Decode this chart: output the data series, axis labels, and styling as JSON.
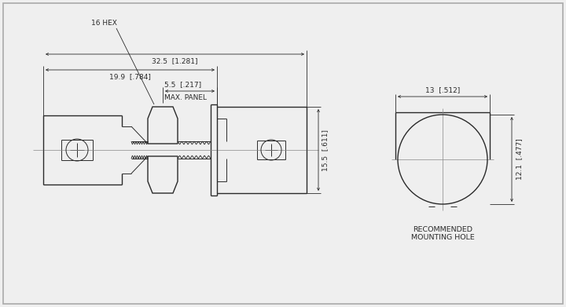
{
  "bg_color": "#efefef",
  "line_color": "#2a2a2a",
  "lw": 1.0,
  "thin_lw": 0.7,
  "dim_lw": 0.6,
  "font_size": 6.5,
  "annotations": {
    "hex_label": "16 HEX",
    "dim_55": "5.5  [.217]",
    "max_panel": "MAX. PANEL",
    "dim_199": "19.9  [.784]",
    "dim_325": "32.5  [1.281]",
    "dim_155": "15.5  [.611]",
    "dim_13": "13  [.512]",
    "dim_121": "12.1  [.477]",
    "rec_mount": "RECOMMENDED\nMOUNTING HOLE"
  }
}
